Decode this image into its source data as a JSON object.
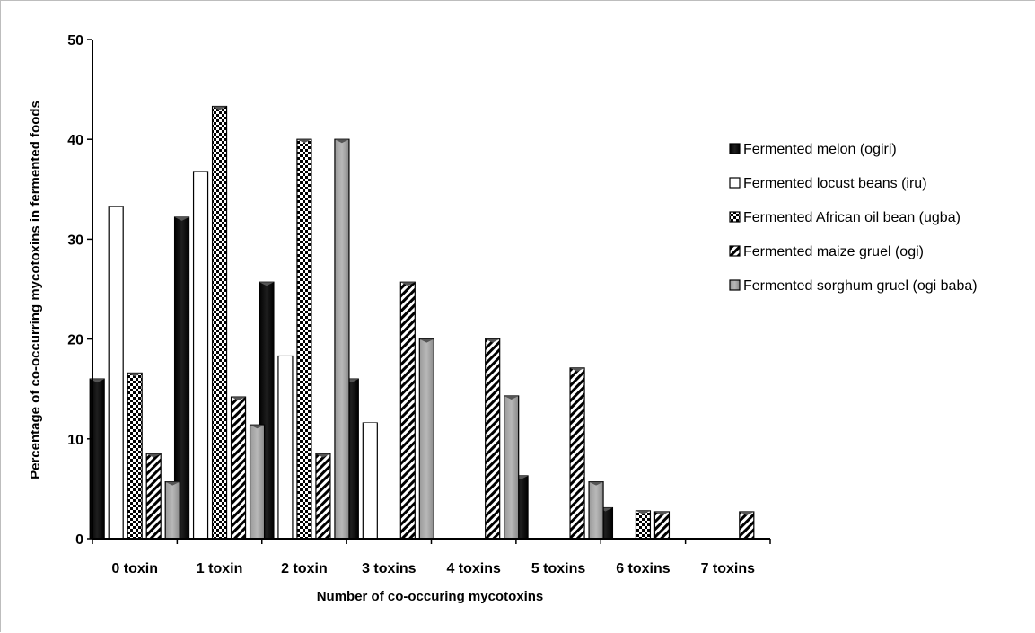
{
  "chart_data": {
    "type": "bar",
    "title": "",
    "xlabel": "Number of co-occuring mycotoxins",
    "ylabel": "Percentage  of co-occurring mycotoxins in fermented foods",
    "ylim": [
      0,
      50
    ],
    "yticks": [
      "0",
      "10",
      "20",
      "30",
      "40",
      "50"
    ],
    "grid": false,
    "legend_position": "right",
    "categories": [
      "0 toxin",
      "1 toxin",
      "2 toxin",
      "3 toxins",
      "4 toxins",
      "5 toxins",
      "6 toxins",
      "7 toxins"
    ],
    "series": [
      {
        "name": "Fermented melon (ogiri)",
        "pattern": "solid-black",
        "values": [
          16,
          32.2,
          25.7,
          16,
          0,
          6.3,
          3.1,
          0
        ]
      },
      {
        "name": "Fermented locust beans (iru)",
        "pattern": "white",
        "values": [
          33.3,
          36.7,
          18.3,
          11.6,
          0,
          0,
          0,
          0
        ]
      },
      {
        "name": "Fermented African oil bean (ugba)",
        "pattern": "checker",
        "values": [
          16.6,
          43.3,
          40,
          0,
          0,
          0,
          2.8,
          0
        ]
      },
      {
        "name": "Fermented maize gruel (ogi)",
        "pattern": "diagonal",
        "values": [
          8.5,
          14.2,
          8.5,
          25.7,
          20,
          17.1,
          2.7,
          2.7
        ]
      },
      {
        "name": "Fermented sorghum gruel (ogi baba)",
        "pattern": "gray",
        "values": [
          5.7,
          11.4,
          40,
          20,
          14.3,
          5.7,
          0,
          0
        ]
      }
    ]
  }
}
